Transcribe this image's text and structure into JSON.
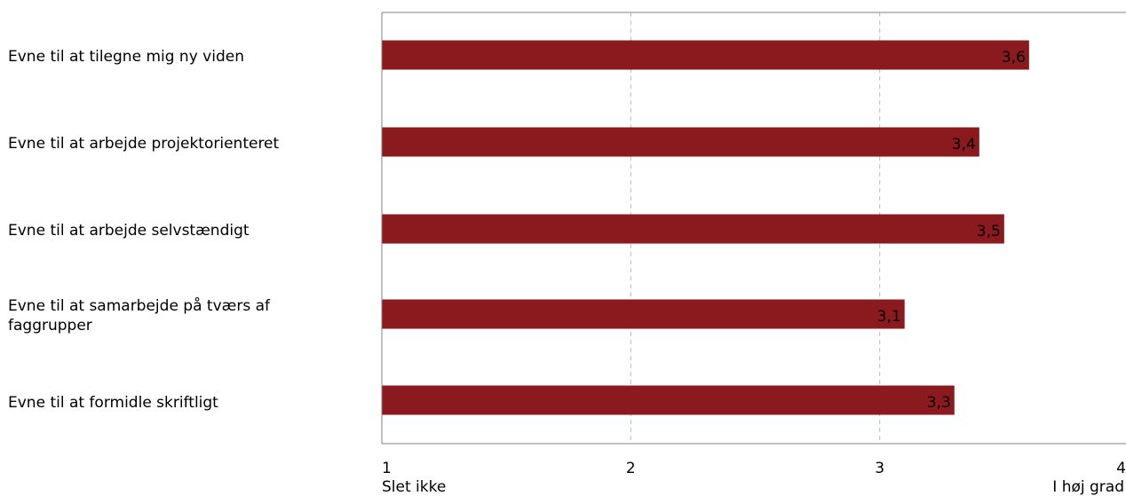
{
  "chart_data": {
    "type": "bar",
    "orientation": "horizontal",
    "categories": [
      "Evne til at tilegne mig ny viden",
      "Evne til at arbejde projektorienteret",
      "Evne til at arbejde selvstændigt",
      "Evne til at samarbejde på tværs af faggrupper",
      "Evne til at formidle skriftligt"
    ],
    "values": [
      3.6,
      3.4,
      3.5,
      3.1,
      3.3
    ],
    "value_labels": [
      "3,6",
      "3,4",
      "3,5",
      "3,1",
      "3,3"
    ],
    "xlim": [
      1,
      4
    ],
    "xticks": [
      "1",
      "2",
      "3",
      "4"
    ],
    "x_end_labels": {
      "min": "Slet ikke",
      "max": "I høj grad"
    },
    "grid": true,
    "bar_color": "#8b1a1f",
    "grid_color": "#bbbbbb",
    "axis_color": "#808080"
  }
}
